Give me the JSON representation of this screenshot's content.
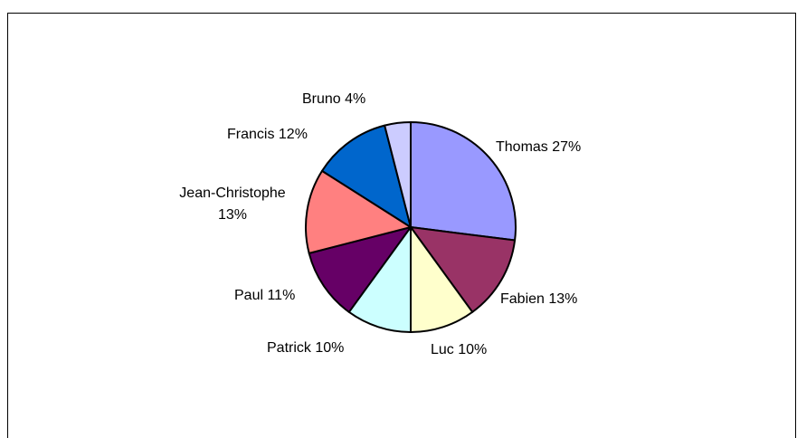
{
  "chart_data": {
    "type": "pie",
    "title": "",
    "slices": [
      {
        "name": "Thomas",
        "value": 27,
        "label": "Thomas 27%",
        "color": "#9999FF"
      },
      {
        "name": "Fabien",
        "value": 13,
        "label": "Fabien 13%",
        "color": "#993366"
      },
      {
        "name": "Luc",
        "value": 10,
        "label": "Luc 10%",
        "color": "#FFFFCC"
      },
      {
        "name": "Patrick",
        "value": 10,
        "label": "Patrick 10%",
        "color": "#CCFFFF"
      },
      {
        "name": "Paul",
        "value": 11,
        "label": "Paul 11%",
        "color": "#660066"
      },
      {
        "name": "Jean-Christophe",
        "value": 13,
        "label_lines": [
          "Jean-Christophe",
          "13%"
        ],
        "color": "#FF8080"
      },
      {
        "name": "Francis",
        "value": 12,
        "label": "Francis 12%",
        "color": "#0066CC"
      },
      {
        "name": "Bruno",
        "value": 4,
        "label": "Bruno 4%",
        "color": "#CCCCFF"
      }
    ],
    "legend": "none",
    "start_angle": "12 o'clock",
    "direction": "clockwise"
  }
}
